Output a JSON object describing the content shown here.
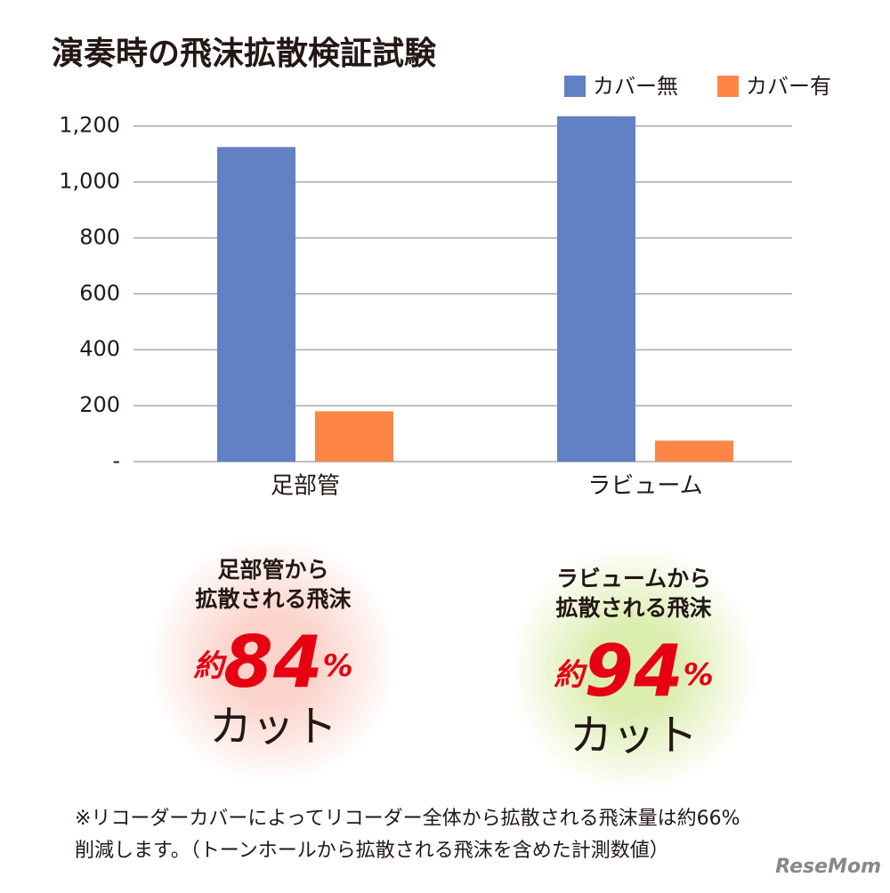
{
  "chart_data": {
    "type": "bar",
    "title": "演奏時の飛沫拡散検証試験",
    "categories": [
      "足部管",
      "ラビューム"
    ],
    "series": [
      {
        "name": "カバー無",
        "color": "#6281c5",
        "values": [
          1125,
          1235
        ]
      },
      {
        "name": "カバー有",
        "color": "#fd8646",
        "values": [
          180,
          75
        ]
      }
    ],
    "ylim": [
      0,
      1250
    ],
    "yticks": [
      {
        "value": 0,
        "label": "-"
      },
      200,
      400,
      600,
      800,
      {
        "value": 1000,
        "label": "1,000"
      },
      {
        "value": 1200,
        "label": "1,200"
      }
    ],
    "grid": true,
    "legend": "top-right"
  },
  "annotations": [
    {
      "line1": "足部管から",
      "line2": "拡散される飛沫",
      "prefix": "約",
      "value": 84,
      "unit": "%",
      "suffix": "カット",
      "color": "#f7c0b8"
    },
    {
      "line1": "ラビュームから",
      "line2": "拡散される飛沫",
      "prefix": "約",
      "value": 94,
      "unit": "%",
      "suffix": "カット",
      "color": "#d6e9a6"
    }
  ],
  "footnote": [
    "※リコーダーカバーによってリコーダー全体から拡散される飛沫量は約66%",
    "削減します。（トーンホールから拡散される飛沫を含めた計測数値）"
  ],
  "watermark": "ReseMom"
}
